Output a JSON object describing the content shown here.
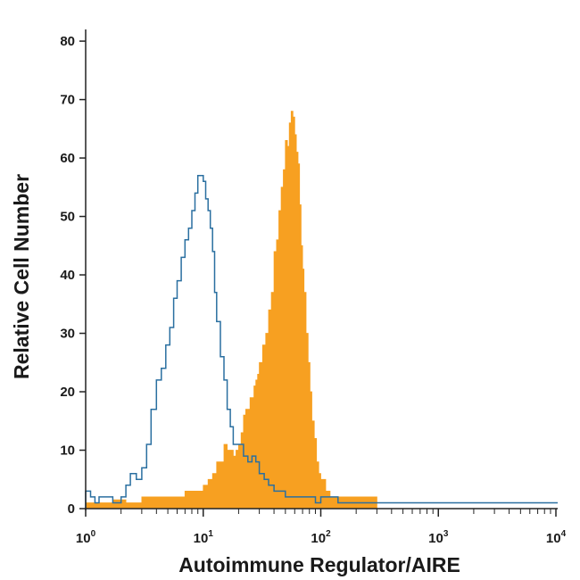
{
  "chart_data": {
    "type": "area",
    "title": "",
    "xlabel": "Autoimmune Regulator/AIRE",
    "ylabel": "Relative Cell Number",
    "x_scale": "log",
    "xlim": [
      1,
      10000
    ],
    "ylim": [
      0,
      82
    ],
    "x_ticks": [
      {
        "base": "10",
        "exp": "0",
        "value": 1
      },
      {
        "base": "10",
        "exp": "1",
        "value": 10
      },
      {
        "base": "10",
        "exp": "2",
        "value": 100
      },
      {
        "base": "10",
        "exp": "3",
        "value": 1000
      },
      {
        "base": "10",
        "exp": "4",
        "value": 10000
      }
    ],
    "y_ticks": [
      "0",
      "10",
      "20",
      "30",
      "40",
      "50",
      "60",
      "70",
      "80"
    ],
    "grid": false,
    "legend": "none",
    "series": [
      {
        "style": "filled",
        "color": "#f7a021",
        "x": [
          1,
          1.3,
          1.7,
          2.2,
          3,
          4,
          5,
          6,
          7,
          8,
          9,
          10,
          11,
          12,
          13,
          14,
          15,
          16,
          17,
          18,
          19,
          20,
          21,
          22,
          23,
          24,
          25,
          26,
          27,
          28,
          29,
          30,
          32,
          34,
          36,
          38,
          40,
          42,
          44,
          46,
          48,
          50,
          52,
          54,
          56,
          58,
          60,
          62,
          64,
          66,
          68,
          70,
          72,
          75,
          78,
          81,
          84,
          88,
          92,
          96,
          100,
          110,
          120,
          140,
          160,
          200,
          250,
          300
        ],
        "y": [
          1,
          1,
          1.5,
          1,
          2,
          2,
          2,
          2,
          3,
          3,
          3,
          4,
          5,
          6,
          8,
          8,
          11,
          10,
          10,
          9,
          10,
          11,
          13,
          16,
          17,
          17,
          19,
          19,
          21,
          22,
          23,
          25,
          28,
          30,
          34,
          37,
          44,
          46,
          51,
          55,
          58,
          63,
          62,
          66,
          68,
          67,
          64,
          61,
          59,
          52,
          45,
          41,
          37,
          30,
          25,
          20,
          15,
          12,
          8,
          6,
          5,
          3,
          2,
          2,
          2,
          2,
          2,
          0
        ]
      },
      {
        "style": "outline",
        "color": "#2a6fa0",
        "x": [
          1,
          1.1,
          1.2,
          1.3,
          1.5,
          1.7,
          2,
          2.2,
          2.4,
          2.7,
          3,
          3.3,
          3.6,
          4,
          4.4,
          4.8,
          5.2,
          5.6,
          6,
          6.5,
          7,
          7.5,
          8,
          8.5,
          9,
          9.5,
          10,
          10.5,
          11,
          11.5,
          12,
          12.5,
          13,
          14,
          15,
          16,
          17,
          18,
          19,
          20,
          22,
          24,
          26,
          28,
          30,
          33,
          36,
          40,
          45,
          50,
          55,
          60,
          70,
          80,
          90,
          100,
          110,
          120,
          140,
          170,
          200,
          250,
          300,
          400,
          600,
          1000,
          10000
        ],
        "y": [
          3,
          2,
          1,
          2,
          2,
          1,
          2,
          4,
          6,
          5,
          7,
          11,
          17,
          22,
          24,
          28,
          31,
          36,
          39,
          43,
          46,
          48,
          51,
          54,
          57,
          57,
          56,
          53,
          51,
          48,
          44,
          37,
          32,
          26,
          22,
          17,
          14,
          11,
          11,
          11,
          9,
          8,
          9,
          8,
          6,
          5,
          4,
          3,
          3,
          2,
          2,
          2,
          2,
          2,
          1,
          2,
          2,
          2,
          1,
          1,
          1,
          1,
          1,
          1,
          1,
          1,
          1
        ]
      }
    ]
  }
}
